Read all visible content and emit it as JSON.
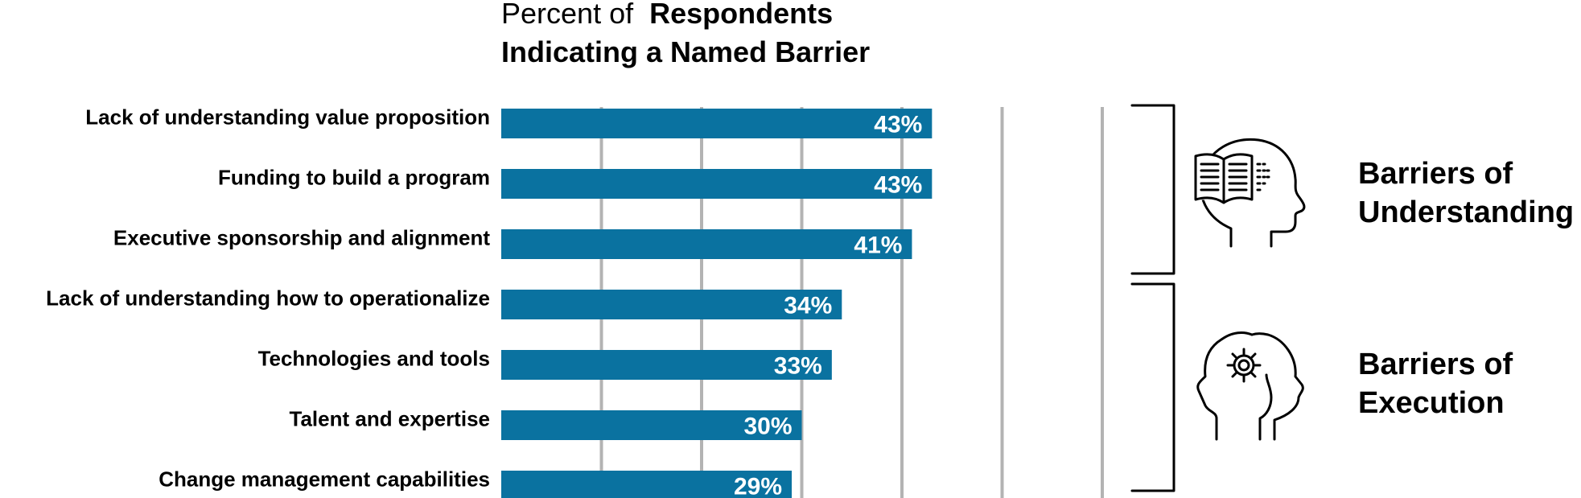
{
  "colors": {
    "bar": "#0a72a0",
    "grid": "#b3b3b3",
    "text": "#000000",
    "value_text": "#ffffff"
  },
  "title": {
    "line1_light": "Percent of",
    "line1_bold": "Respondents",
    "line2": "Indicating a Named Barrier"
  },
  "groups": [
    {
      "line1": "Barriers of",
      "line2": "Understanding",
      "icon": "head-with-book-icon"
    },
    {
      "line1": "Barriers of",
      "line2": "Execution",
      "icon": "head-with-gear-icon"
    }
  ],
  "chart_data": {
    "type": "bar",
    "orientation": "horizontal",
    "title": "Percent of Respondents Indicating a Named Barrier",
    "categories": [
      "Lack of understanding value proposition",
      "Funding to build a program",
      "Executive sponsorship and alignment",
      "Lack of understanding how to operationalize",
      "Technologies and tools",
      "Talent and expertise",
      "Change management capabilities"
    ],
    "values": [
      43,
      43,
      41,
      34,
      33,
      30,
      29
    ],
    "value_labels": [
      "43%",
      "43%",
      "41%",
      "34%",
      "33%",
      "30%",
      "29%"
    ],
    "xlim": [
      0,
      60
    ],
    "grid_step": 10,
    "grid": true
  }
}
